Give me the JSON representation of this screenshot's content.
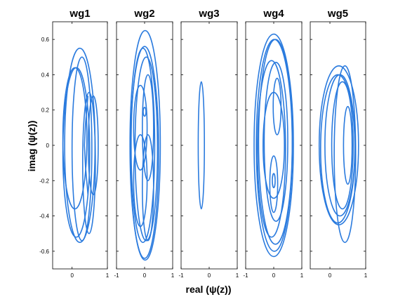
{
  "chart_data": {
    "type": "line",
    "xlabel": "real (ψ(z))",
    "ylabel": "imag (ψ(z))",
    "ylim": [
      -0.7,
      0.7
    ],
    "yticks": [
      -0.6,
      -0.4,
      -0.2,
      0,
      0.2,
      0.4,
      0.6
    ],
    "yticklabels": [
      "-0.6",
      "-0.4",
      "-0.2",
      "0",
      "0.2",
      "0.4",
      "0.6"
    ],
    "grid": false,
    "line_color": "#2b7bde",
    "panels": [
      {
        "title": "wg1",
        "xlim": [
          -0.55,
          1
        ],
        "xticks": [
          0,
          1
        ],
        "xticklabels": [
          "0",
          "1"
        ],
        "curves": [
          {
            "type": "ellipse",
            "cx": 0.22,
            "cy": 0.0,
            "rx": 0.43,
            "ry": 0.55
          },
          {
            "type": "ellipse",
            "cx": 0.12,
            "cy": -0.04,
            "rx": 0.38,
            "ry": 0.48
          },
          {
            "type": "ellipse",
            "cx": 0.28,
            "cy": -0.02,
            "rx": 0.28,
            "ry": 0.52
          },
          {
            "type": "ellipse",
            "cx": 0.48,
            "cy": -0.1,
            "rx": 0.18,
            "ry": 0.4
          },
          {
            "type": "ellipse",
            "cx": 0.6,
            "cy": 0.0,
            "rx": 0.14,
            "ry": 0.28
          },
          {
            "type": "ellipse",
            "cx": 0.08,
            "cy": 0.04,
            "rx": 0.34,
            "ry": 0.4
          },
          {
            "type": "polyline",
            "x": [
              0.45,
              0.38,
              0.35,
              0.38,
              0.45
            ],
            "y": [
              0.28,
              0.12,
              0.0,
              -0.12,
              -0.28
            ]
          }
        ]
      },
      {
        "title": "wg2",
        "xlim": [
          -1,
          1
        ],
        "xticks": [
          -1,
          0,
          1
        ],
        "xticklabels": [
          "-1",
          "0",
          "1"
        ],
        "curves": [
          {
            "type": "ellipse",
            "cx": 0.02,
            "cy": 0.0,
            "rx": 0.54,
            "ry": 0.65
          },
          {
            "type": "ellipse",
            "cx": 0.0,
            "cy": -0.04,
            "rx": 0.5,
            "ry": 0.6
          },
          {
            "type": "ellipse",
            "cx": -0.06,
            "cy": 0.0,
            "rx": 0.42,
            "ry": 0.55
          },
          {
            "type": "ellipse",
            "cx": 0.06,
            "cy": -0.02,
            "rx": 0.4,
            "ry": 0.52
          },
          {
            "type": "ellipse",
            "cx": -0.15,
            "cy": 0.1,
            "rx": 0.24,
            "ry": 0.24
          },
          {
            "type": "ellipse",
            "cx": 0.12,
            "cy": 0.1,
            "rx": 0.2,
            "ry": 0.3
          },
          {
            "type": "ellipse",
            "cx": -0.15,
            "cy": -0.2,
            "rx": 0.24,
            "ry": 0.26
          },
          {
            "type": "ellipse",
            "cx": 0.12,
            "cy": -0.24,
            "rx": 0.2,
            "ry": 0.3
          },
          {
            "type": "ellipse",
            "cx": 0.0,
            "cy": 0.19,
            "rx": 0.05,
            "ry": 0.025
          }
        ]
      },
      {
        "title": "wg3",
        "xlim": [
          -1,
          1
        ],
        "xticks": [
          -1,
          0,
          1
        ],
        "xticklabels": [
          "-1",
          "0",
          "1"
        ],
        "curves": [
          {
            "type": "ellipse",
            "cx": -0.28,
            "cy": 0.0,
            "rx": 0.11,
            "ry": 0.36
          }
        ]
      },
      {
        "title": "wg4",
        "xlim": [
          -1,
          1
        ],
        "xticks": [
          -1,
          0,
          1
        ],
        "xticklabels": [
          "-1",
          "0",
          "1"
        ],
        "curves": [
          {
            "type": "ellipse",
            "cx": 0.0,
            "cy": 0.0,
            "rx": 0.7,
            "ry": 0.63
          },
          {
            "type": "ellipse",
            "cx": 0.02,
            "cy": 0.0,
            "rx": 0.64,
            "ry": 0.6
          },
          {
            "type": "ellipse",
            "cx": 0.06,
            "cy": 0.02,
            "rx": 0.6,
            "ry": 0.58
          },
          {
            "type": "ellipse",
            "cx": -0.08,
            "cy": -0.02,
            "rx": 0.5,
            "ry": 0.5
          },
          {
            "type": "ellipse",
            "cx": 0.08,
            "cy": 0.02,
            "rx": 0.42,
            "ry": 0.45
          },
          {
            "type": "ellipse",
            "cx": 0.12,
            "cy": 0.22,
            "rx": 0.14,
            "ry": 0.16
          },
          {
            "type": "ellipse",
            "cx": 0.0,
            "cy": -0.22,
            "rx": 0.14,
            "ry": 0.16
          },
          {
            "type": "ellipse",
            "cx": 0.0,
            "cy": 0.0,
            "rx": 0.38,
            "ry": 0.3
          },
          {
            "type": "ellipse",
            "cx": 0.0,
            "cy": -0.2,
            "rx": 0.05,
            "ry": 0.04
          }
        ]
      },
      {
        "title": "wg5",
        "xlim": [
          -0.55,
          1
        ],
        "xticks": [
          0,
          1
        ],
        "xticklabels": [
          "0",
          "1"
        ],
        "curves": [
          {
            "type": "ellipse",
            "cx": 0.25,
            "cy": 0.0,
            "rx": 0.55,
            "ry": 0.45
          },
          {
            "type": "ellipse",
            "cx": 0.22,
            "cy": -0.02,
            "rx": 0.48,
            "ry": 0.42
          },
          {
            "type": "ellipse",
            "cx": 0.28,
            "cy": 0.0,
            "rx": 0.42,
            "ry": 0.4
          },
          {
            "type": "ellipse",
            "cx": 0.42,
            "cy": -0.05,
            "rx": 0.3,
            "ry": 0.5
          },
          {
            "type": "ellipse",
            "cx": 0.35,
            "cy": 0.0,
            "rx": 0.3,
            "ry": 0.36
          },
          {
            "type": "ellipse",
            "cx": 0.5,
            "cy": 0.0,
            "rx": 0.12,
            "ry": 0.22
          }
        ]
      }
    ]
  }
}
